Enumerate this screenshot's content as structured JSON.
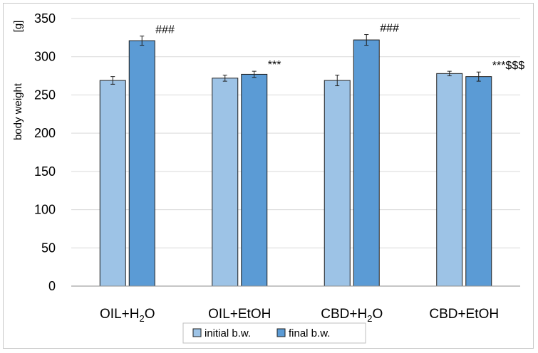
{
  "chart_data": {
    "type": "bar",
    "title": "",
    "ylabel": "body weight",
    "yunit": "[g]",
    "ylim": [
      0,
      350
    ],
    "yticks": [
      0,
      50,
      100,
      150,
      200,
      250,
      300,
      350
    ],
    "grid": true,
    "legend_position": "bottom",
    "categories": [
      {
        "main": "OIL+H",
        "sub": "2",
        "rest": "O"
      },
      {
        "main": "OIL+EtOH",
        "sub": "",
        "rest": ""
      },
      {
        "main": "CBD+H",
        "sub": "2",
        "rest": "O"
      },
      {
        "main": "CBD+EtOH",
        "sub": "",
        "rest": ""
      }
    ],
    "series": [
      {
        "name": "initial b.w.",
        "color": "#9dc3e6",
        "values": [
          269,
          272,
          269,
          278
        ],
        "errors": [
          5,
          4,
          7,
          3
        ],
        "annotations": [
          "",
          "",
          "",
          ""
        ]
      },
      {
        "name": "final b.w.",
        "color": "#5b9bd5",
        "values": [
          321,
          277,
          322,
          274
        ],
        "errors": [
          6,
          4,
          7,
          6
        ],
        "annotations": [
          "###",
          "***",
          "###",
          "***$$$"
        ]
      }
    ]
  }
}
